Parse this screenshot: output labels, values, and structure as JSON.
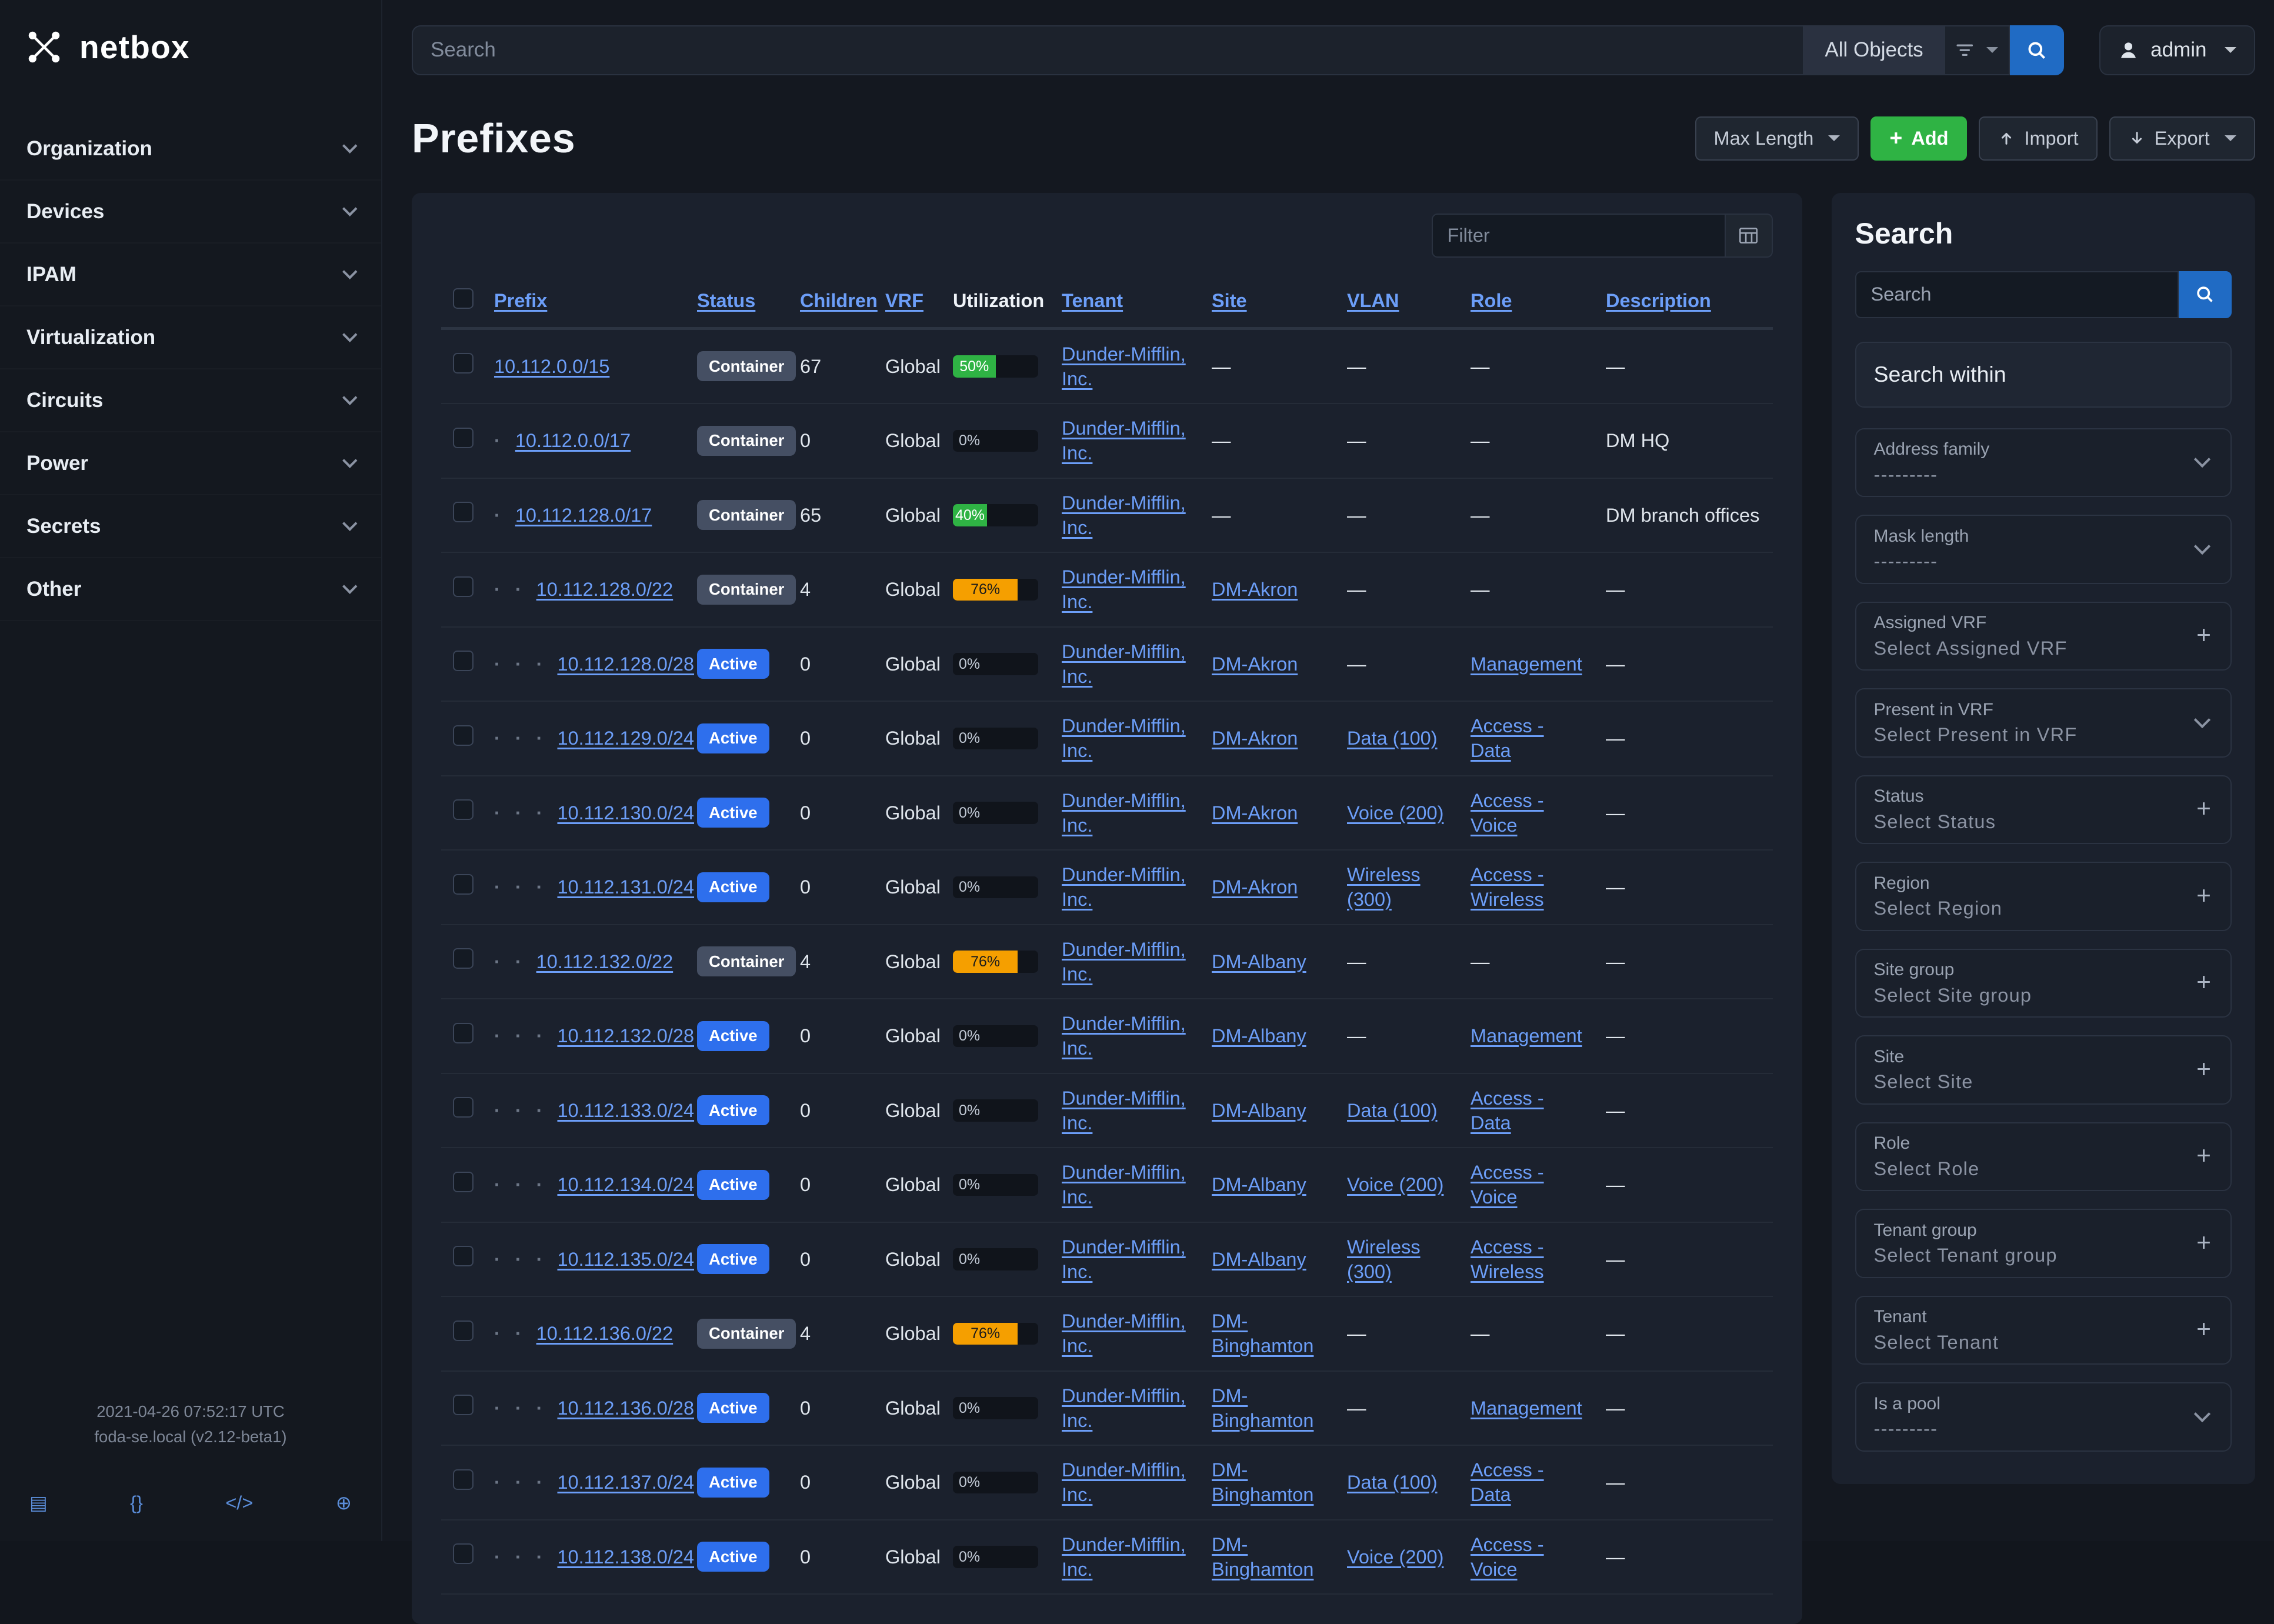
{
  "brand": {
    "name": "netbox"
  },
  "topbar": {
    "search_placeholder": "Search",
    "scope": "All Objects",
    "user": "admin"
  },
  "sidebar": {
    "items": [
      {
        "label": "Organization"
      },
      {
        "label": "Devices"
      },
      {
        "label": "IPAM"
      },
      {
        "label": "Virtualization"
      },
      {
        "label": "Circuits"
      },
      {
        "label": "Power"
      },
      {
        "label": "Secrets"
      },
      {
        "label": "Other"
      }
    ],
    "footer": {
      "line1": "2021-04-26 07:52:17 UTC",
      "line2": "foda-se.local (v2.12-beta1)",
      "icons": [
        {
          "name": "docs-book-icon",
          "glyph": "▤"
        },
        {
          "name": "rest-api-icon",
          "glyph": "{}"
        },
        {
          "name": "code-icon",
          "glyph": "</>"
        },
        {
          "name": "globe-icon",
          "glyph": "⊕"
        }
      ]
    }
  },
  "page": {
    "title": "Prefixes",
    "toolbar": {
      "max_length": "Max Length",
      "add": "Add",
      "import": "Import",
      "export": "Export"
    }
  },
  "table": {
    "filter_placeholder": "Filter",
    "empty_cell": "—",
    "columns": [
      {
        "label": "Prefix",
        "link": true
      },
      {
        "label": "Status",
        "link": true
      },
      {
        "label": "Children",
        "link": true
      },
      {
        "label": "VRF",
        "link": true
      },
      {
        "label": "Utilization",
        "link": false
      },
      {
        "label": "Tenant",
        "link": true
      },
      {
        "label": "Site",
        "link": true
      },
      {
        "label": "VLAN",
        "link": true
      },
      {
        "label": "Role",
        "link": true
      },
      {
        "label": "Description",
        "link": true
      }
    ],
    "rows": [
      {
        "depth": 0,
        "prefix": "10.112.0.0/15",
        "status": "Container",
        "children": "67",
        "vrf": "Global",
        "util": 50,
        "util_variant": "green",
        "tenant": "Dunder-Mifflin, Inc.",
        "site": "",
        "vlan": "",
        "role": "",
        "description": ""
      },
      {
        "depth": 1,
        "prefix": "10.112.0.0/17",
        "status": "Container",
        "children": "0",
        "vrf": "Global",
        "util": 0,
        "util_variant": "green",
        "tenant": "Dunder-Mifflin, Inc.",
        "site": "",
        "vlan": "",
        "role": "",
        "description": "DM HQ"
      },
      {
        "depth": 1,
        "prefix": "10.112.128.0/17",
        "status": "Container",
        "children": "65",
        "vrf": "Global",
        "util": 40,
        "util_variant": "green",
        "tenant": "Dunder-Mifflin, Inc.",
        "site": "",
        "vlan": "",
        "role": "",
        "description": "DM branch offices"
      },
      {
        "depth": 2,
        "prefix": "10.112.128.0/22",
        "status": "Container",
        "children": "4",
        "vrf": "Global",
        "util": 76,
        "util_variant": "orange",
        "tenant": "Dunder-Mifflin, Inc.",
        "site": "DM-Akron",
        "vlan": "",
        "role": "",
        "description": ""
      },
      {
        "depth": 3,
        "prefix": "10.112.128.0/28",
        "status": "Active",
        "children": "0",
        "vrf": "Global",
        "util": 0,
        "util_variant": "green",
        "tenant": "Dunder-Mifflin, Inc.",
        "site": "DM-Akron",
        "vlan": "",
        "role": "Management",
        "description": ""
      },
      {
        "depth": 3,
        "prefix": "10.112.129.0/24",
        "status": "Active",
        "children": "0",
        "vrf": "Global",
        "util": 0,
        "util_variant": "green",
        "tenant": "Dunder-Mifflin, Inc.",
        "site": "DM-Akron",
        "vlan": "Data (100)",
        "role": "Access - Data",
        "description": ""
      },
      {
        "depth": 3,
        "prefix": "10.112.130.0/24",
        "status": "Active",
        "children": "0",
        "vrf": "Global",
        "util": 0,
        "util_variant": "green",
        "tenant": "Dunder-Mifflin, Inc.",
        "site": "DM-Akron",
        "vlan": "Voice (200)",
        "role": "Access - Voice",
        "description": ""
      },
      {
        "depth": 3,
        "prefix": "10.112.131.0/24",
        "status": "Active",
        "children": "0",
        "vrf": "Global",
        "util": 0,
        "util_variant": "green",
        "tenant": "Dunder-Mifflin, Inc.",
        "site": "DM-Akron",
        "vlan": "Wireless (300)",
        "role": "Access - Wireless",
        "description": ""
      },
      {
        "depth": 2,
        "prefix": "10.112.132.0/22",
        "status": "Container",
        "children": "4",
        "vrf": "Global",
        "util": 76,
        "util_variant": "orange",
        "tenant": "Dunder-Mifflin, Inc.",
        "site": "DM-Albany",
        "vlan": "",
        "role": "",
        "description": ""
      },
      {
        "depth": 3,
        "prefix": "10.112.132.0/28",
        "status": "Active",
        "children": "0",
        "vrf": "Global",
        "util": 0,
        "util_variant": "green",
        "tenant": "Dunder-Mifflin, Inc.",
        "site": "DM-Albany",
        "vlan": "",
        "role": "Management",
        "description": ""
      },
      {
        "depth": 3,
        "prefix": "10.112.133.0/24",
        "status": "Active",
        "children": "0",
        "vrf": "Global",
        "util": 0,
        "util_variant": "green",
        "tenant": "Dunder-Mifflin, Inc.",
        "site": "DM-Albany",
        "vlan": "Data (100)",
        "role": "Access - Data",
        "description": ""
      },
      {
        "depth": 3,
        "prefix": "10.112.134.0/24",
        "status": "Active",
        "children": "0",
        "vrf": "Global",
        "util": 0,
        "util_variant": "green",
        "tenant": "Dunder-Mifflin, Inc.",
        "site": "DM-Albany",
        "vlan": "Voice (200)",
        "role": "Access - Voice",
        "description": ""
      },
      {
        "depth": 3,
        "prefix": "10.112.135.0/24",
        "status": "Active",
        "children": "0",
        "vrf": "Global",
        "util": 0,
        "util_variant": "green",
        "tenant": "Dunder-Mifflin, Inc.",
        "site": "DM-Albany",
        "vlan": "Wireless (300)",
        "role": "Access - Wireless",
        "description": ""
      },
      {
        "depth": 2,
        "prefix": "10.112.136.0/22",
        "status": "Container",
        "children": "4",
        "vrf": "Global",
        "util": 76,
        "util_variant": "orange",
        "tenant": "Dunder-Mifflin, Inc.",
        "site": "DM-Binghamton",
        "vlan": "",
        "role": "",
        "description": ""
      },
      {
        "depth": 3,
        "prefix": "10.112.136.0/28",
        "status": "Active",
        "children": "0",
        "vrf": "Global",
        "util": 0,
        "util_variant": "green",
        "tenant": "Dunder-Mifflin, Inc.",
        "site": "DM-Binghamton",
        "vlan": "",
        "role": "Management",
        "description": ""
      },
      {
        "depth": 3,
        "prefix": "10.112.137.0/24",
        "status": "Active",
        "children": "0",
        "vrf": "Global",
        "util": 0,
        "util_variant": "green",
        "tenant": "Dunder-Mifflin, Inc.",
        "site": "DM-Binghamton",
        "vlan": "Data (100)",
        "role": "Access - Data",
        "description": ""
      },
      {
        "depth": 3,
        "prefix": "10.112.138.0/24",
        "status": "Active",
        "children": "0",
        "vrf": "Global",
        "util": 0,
        "util_variant": "green",
        "tenant": "Dunder-Mifflin, Inc.",
        "site": "DM-Binghamton",
        "vlan": "Voice (200)",
        "role": "Access - Voice",
        "description": ""
      }
    ]
  },
  "search_panel": {
    "title": "Search",
    "input_placeholder": "Search",
    "within_label": "Search within",
    "filters": [
      {
        "label": "Address family",
        "value": "---------",
        "control": "select"
      },
      {
        "label": "Mask length",
        "value": "---------",
        "control": "select"
      },
      {
        "label": "Assigned VRF",
        "value": "Select Assigned VRF",
        "control": "plus"
      },
      {
        "label": "Present in VRF",
        "value": "Select Present in VRF",
        "control": "select"
      },
      {
        "label": "Status",
        "value": "Select Status",
        "control": "plus"
      },
      {
        "label": "Region",
        "value": "Select Region",
        "control": "plus"
      },
      {
        "label": "Site group",
        "value": "Select Site group",
        "control": "plus"
      },
      {
        "label": "Site",
        "value": "Select Site",
        "control": "plus"
      },
      {
        "label": "Role",
        "value": "Select Role",
        "control": "plus"
      },
      {
        "label": "Tenant group",
        "value": "Select Tenant group",
        "control": "plus"
      },
      {
        "label": "Tenant",
        "value": "Select Tenant",
        "control": "plus"
      },
      {
        "label": "Is a pool",
        "value": "---------",
        "control": "select"
      }
    ]
  },
  "colors": {
    "accent_blue": "#206bc4",
    "link_blue": "#6c9ef8",
    "active_badge": "#2e6fed",
    "container_badge": "#454f63",
    "util_green": "#2fb344",
    "util_warning": "#f59f00",
    "add_green": "#2fb344"
  }
}
